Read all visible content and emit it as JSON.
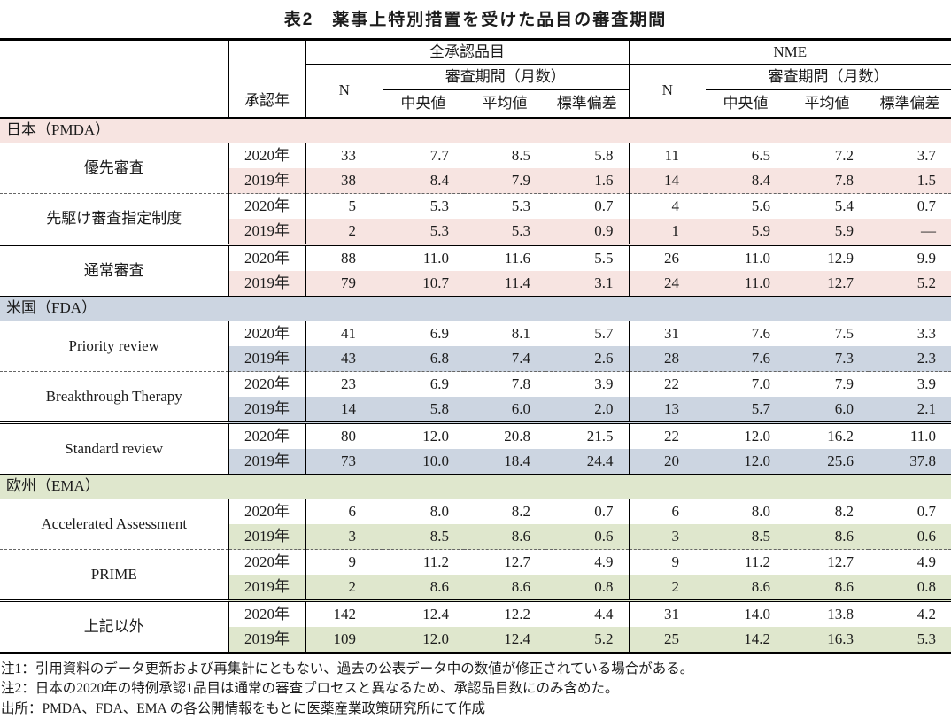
{
  "title": "表2　薬事上特別措置を受けた品目の審査期間",
  "table": {
    "headers": {
      "approval_year": "承認年",
      "group_all": "全承認品目",
      "group_nme": "NME",
      "n": "N",
      "review_period": "審査期間（月数）",
      "median": "中央値",
      "mean": "平均値",
      "sd": "標準偏差"
    },
    "sections": [
      {
        "name": "日本（PMDA）",
        "color": "#f7e4e1",
        "categories": [
          {
            "label": "優先審査",
            "separator": "none",
            "rows": [
              {
                "year": "2020年",
                "shaded": false,
                "all": [
                  "33",
                  "7.7",
                  "8.5",
                  "5.8"
                ],
                "nme": [
                  "11",
                  "6.5",
                  "7.2",
                  "3.7"
                ]
              },
              {
                "year": "2019年",
                "shaded": true,
                "all": [
                  "38",
                  "8.4",
                  "7.9",
                  "1.6"
                ],
                "nme": [
                  "14",
                  "8.4",
                  "7.8",
                  "1.5"
                ]
              }
            ]
          },
          {
            "label": "先駆け審査指定制度",
            "separator": "dashed",
            "rows": [
              {
                "year": "2020年",
                "shaded": false,
                "all": [
                  "5",
                  "5.3",
                  "5.3",
                  "0.7"
                ],
                "nme": [
                  "4",
                  "5.6",
                  "5.4",
                  "0.7"
                ]
              },
              {
                "year": "2019年",
                "shaded": true,
                "all": [
                  "2",
                  "5.3",
                  "5.3",
                  "0.9"
                ],
                "nme": [
                  "1",
                  "5.9",
                  "5.9",
                  "—"
                ]
              }
            ]
          },
          {
            "label": "通常審査",
            "separator": "double",
            "rows": [
              {
                "year": "2020年",
                "shaded": false,
                "all": [
                  "88",
                  "11.0",
                  "11.6",
                  "5.5"
                ],
                "nme": [
                  "26",
                  "11.0",
                  "12.9",
                  "9.9"
                ]
              },
              {
                "year": "2019年",
                "shaded": true,
                "all": [
                  "79",
                  "10.7",
                  "11.4",
                  "3.1"
                ],
                "nme": [
                  "24",
                  "11.0",
                  "12.7",
                  "5.2"
                ]
              }
            ]
          }
        ]
      },
      {
        "name": "米国（FDA）",
        "color": "#ccd5e1",
        "categories": [
          {
            "label": "Priority review",
            "separator": "none",
            "rows": [
              {
                "year": "2020年",
                "shaded": false,
                "all": [
                  "41",
                  "6.9",
                  "8.1",
                  "5.7"
                ],
                "nme": [
                  "31",
                  "7.6",
                  "7.5",
                  "3.3"
                ]
              },
              {
                "year": "2019年",
                "shaded": true,
                "all": [
                  "43",
                  "6.8",
                  "7.4",
                  "2.6"
                ],
                "nme": [
                  "28",
                  "7.6",
                  "7.3",
                  "2.3"
                ]
              }
            ]
          },
          {
            "label": "Breakthrough Therapy",
            "separator": "dashed",
            "rows": [
              {
                "year": "2020年",
                "shaded": false,
                "all": [
                  "23",
                  "6.9",
                  "7.8",
                  "3.9"
                ],
                "nme": [
                  "22",
                  "7.0",
                  "7.9",
                  "3.9"
                ]
              },
              {
                "year": "2019年",
                "shaded": true,
                "all": [
                  "14",
                  "5.8",
                  "6.0",
                  "2.0"
                ],
                "nme": [
                  "13",
                  "5.7",
                  "6.0",
                  "2.1"
                ]
              }
            ]
          },
          {
            "label": "Standard review",
            "separator": "double",
            "rows": [
              {
                "year": "2020年",
                "shaded": false,
                "all": [
                  "80",
                  "12.0",
                  "20.8",
                  "21.5"
                ],
                "nme": [
                  "22",
                  "12.0",
                  "16.2",
                  "11.0"
                ]
              },
              {
                "year": "2019年",
                "shaded": true,
                "all": [
                  "73",
                  "10.0",
                  "18.4",
                  "24.4"
                ],
                "nme": [
                  "20",
                  "12.0",
                  "25.6",
                  "37.8"
                ]
              }
            ]
          }
        ]
      },
      {
        "name": "欧州（EMA）",
        "color": "#dfe7cd",
        "categories": [
          {
            "label": "Accelerated Assessment",
            "separator": "none",
            "rows": [
              {
                "year": "2020年",
                "shaded": false,
                "all": [
                  "6",
                  "8.0",
                  "8.2",
                  "0.7"
                ],
                "nme": [
                  "6",
                  "8.0",
                  "8.2",
                  "0.7"
                ]
              },
              {
                "year": "2019年",
                "shaded": true,
                "all": [
                  "3",
                  "8.5",
                  "8.6",
                  "0.6"
                ],
                "nme": [
                  "3",
                  "8.5",
                  "8.6",
                  "0.6"
                ]
              }
            ]
          },
          {
            "label": "PRIME",
            "separator": "dashed",
            "rows": [
              {
                "year": "2020年",
                "shaded": false,
                "all": [
                  "9",
                  "11.2",
                  "12.7",
                  "4.9"
                ],
                "nme": [
                  "9",
                  "11.2",
                  "12.7",
                  "4.9"
                ]
              },
              {
                "year": "2019年",
                "shaded": true,
                "all": [
                  "2",
                  "8.6",
                  "8.6",
                  "0.8"
                ],
                "nme": [
                  "2",
                  "8.6",
                  "8.6",
                  "0.8"
                ]
              }
            ]
          },
          {
            "label": "上記以外",
            "separator": "double",
            "rows": [
              {
                "year": "2020年",
                "shaded": false,
                "all": [
                  "142",
                  "12.4",
                  "12.2",
                  "4.4"
                ],
                "nme": [
                  "31",
                  "14.0",
                  "13.8",
                  "4.2"
                ]
              },
              {
                "year": "2019年",
                "shaded": true,
                "all": [
                  "109",
                  "12.0",
                  "12.4",
                  "5.2"
                ],
                "nme": [
                  "25",
                  "14.2",
                  "16.3",
                  "5.3"
                ]
              }
            ]
          }
        ]
      }
    ]
  },
  "footnotes": [
    "注1：引用資料のデータ更新および再集計にともない、過去の公表データ中の数値が修正されている場合がある。",
    "注2：日本の2020年の特例承認1品目は通常の審査プロセスと異なるため、承認品目数にのみ含めた。",
    "出所：PMDA、FDA、EMA の各公開情報をもとに医薬産業政策研究所にて作成"
  ]
}
